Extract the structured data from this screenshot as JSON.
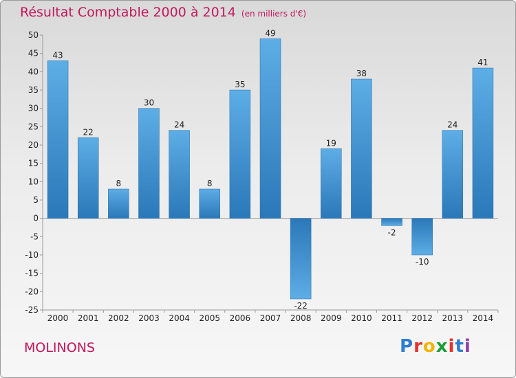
{
  "chart_data": {
    "type": "bar",
    "title": "Résultat Comptable 2000 à 2014",
    "subtitle": "(en milliers d'€)",
    "xlabel": "",
    "ylabel": "",
    "categories": [
      "2000",
      "2001",
      "2002",
      "2003",
      "2004",
      "2005",
      "2006",
      "2007",
      "2008",
      "2009",
      "2010",
      "2011",
      "2012",
      "2013",
      "2014"
    ],
    "values": [
      43,
      22,
      8,
      30,
      24,
      8,
      35,
      49,
      -22,
      19,
      38,
      -2,
      -10,
      24,
      41
    ],
    "ylim": [
      -25,
      50
    ],
    "yticks": [
      50,
      45,
      40,
      35,
      30,
      25,
      20,
      15,
      10,
      5,
      0,
      -5,
      -10,
      -15,
      -20,
      -25
    ],
    "grid": false,
    "colors": {
      "bar_light": "#5dade6",
      "bar_dark": "#2a78b8",
      "grid": "#bdbdbd"
    }
  },
  "footer": {
    "place": "MOLINONS",
    "brand": [
      "P",
      "r",
      "o",
      "x",
      "i",
      "t",
      "i"
    ]
  },
  "colors": {
    "accent": "#c2185b"
  }
}
